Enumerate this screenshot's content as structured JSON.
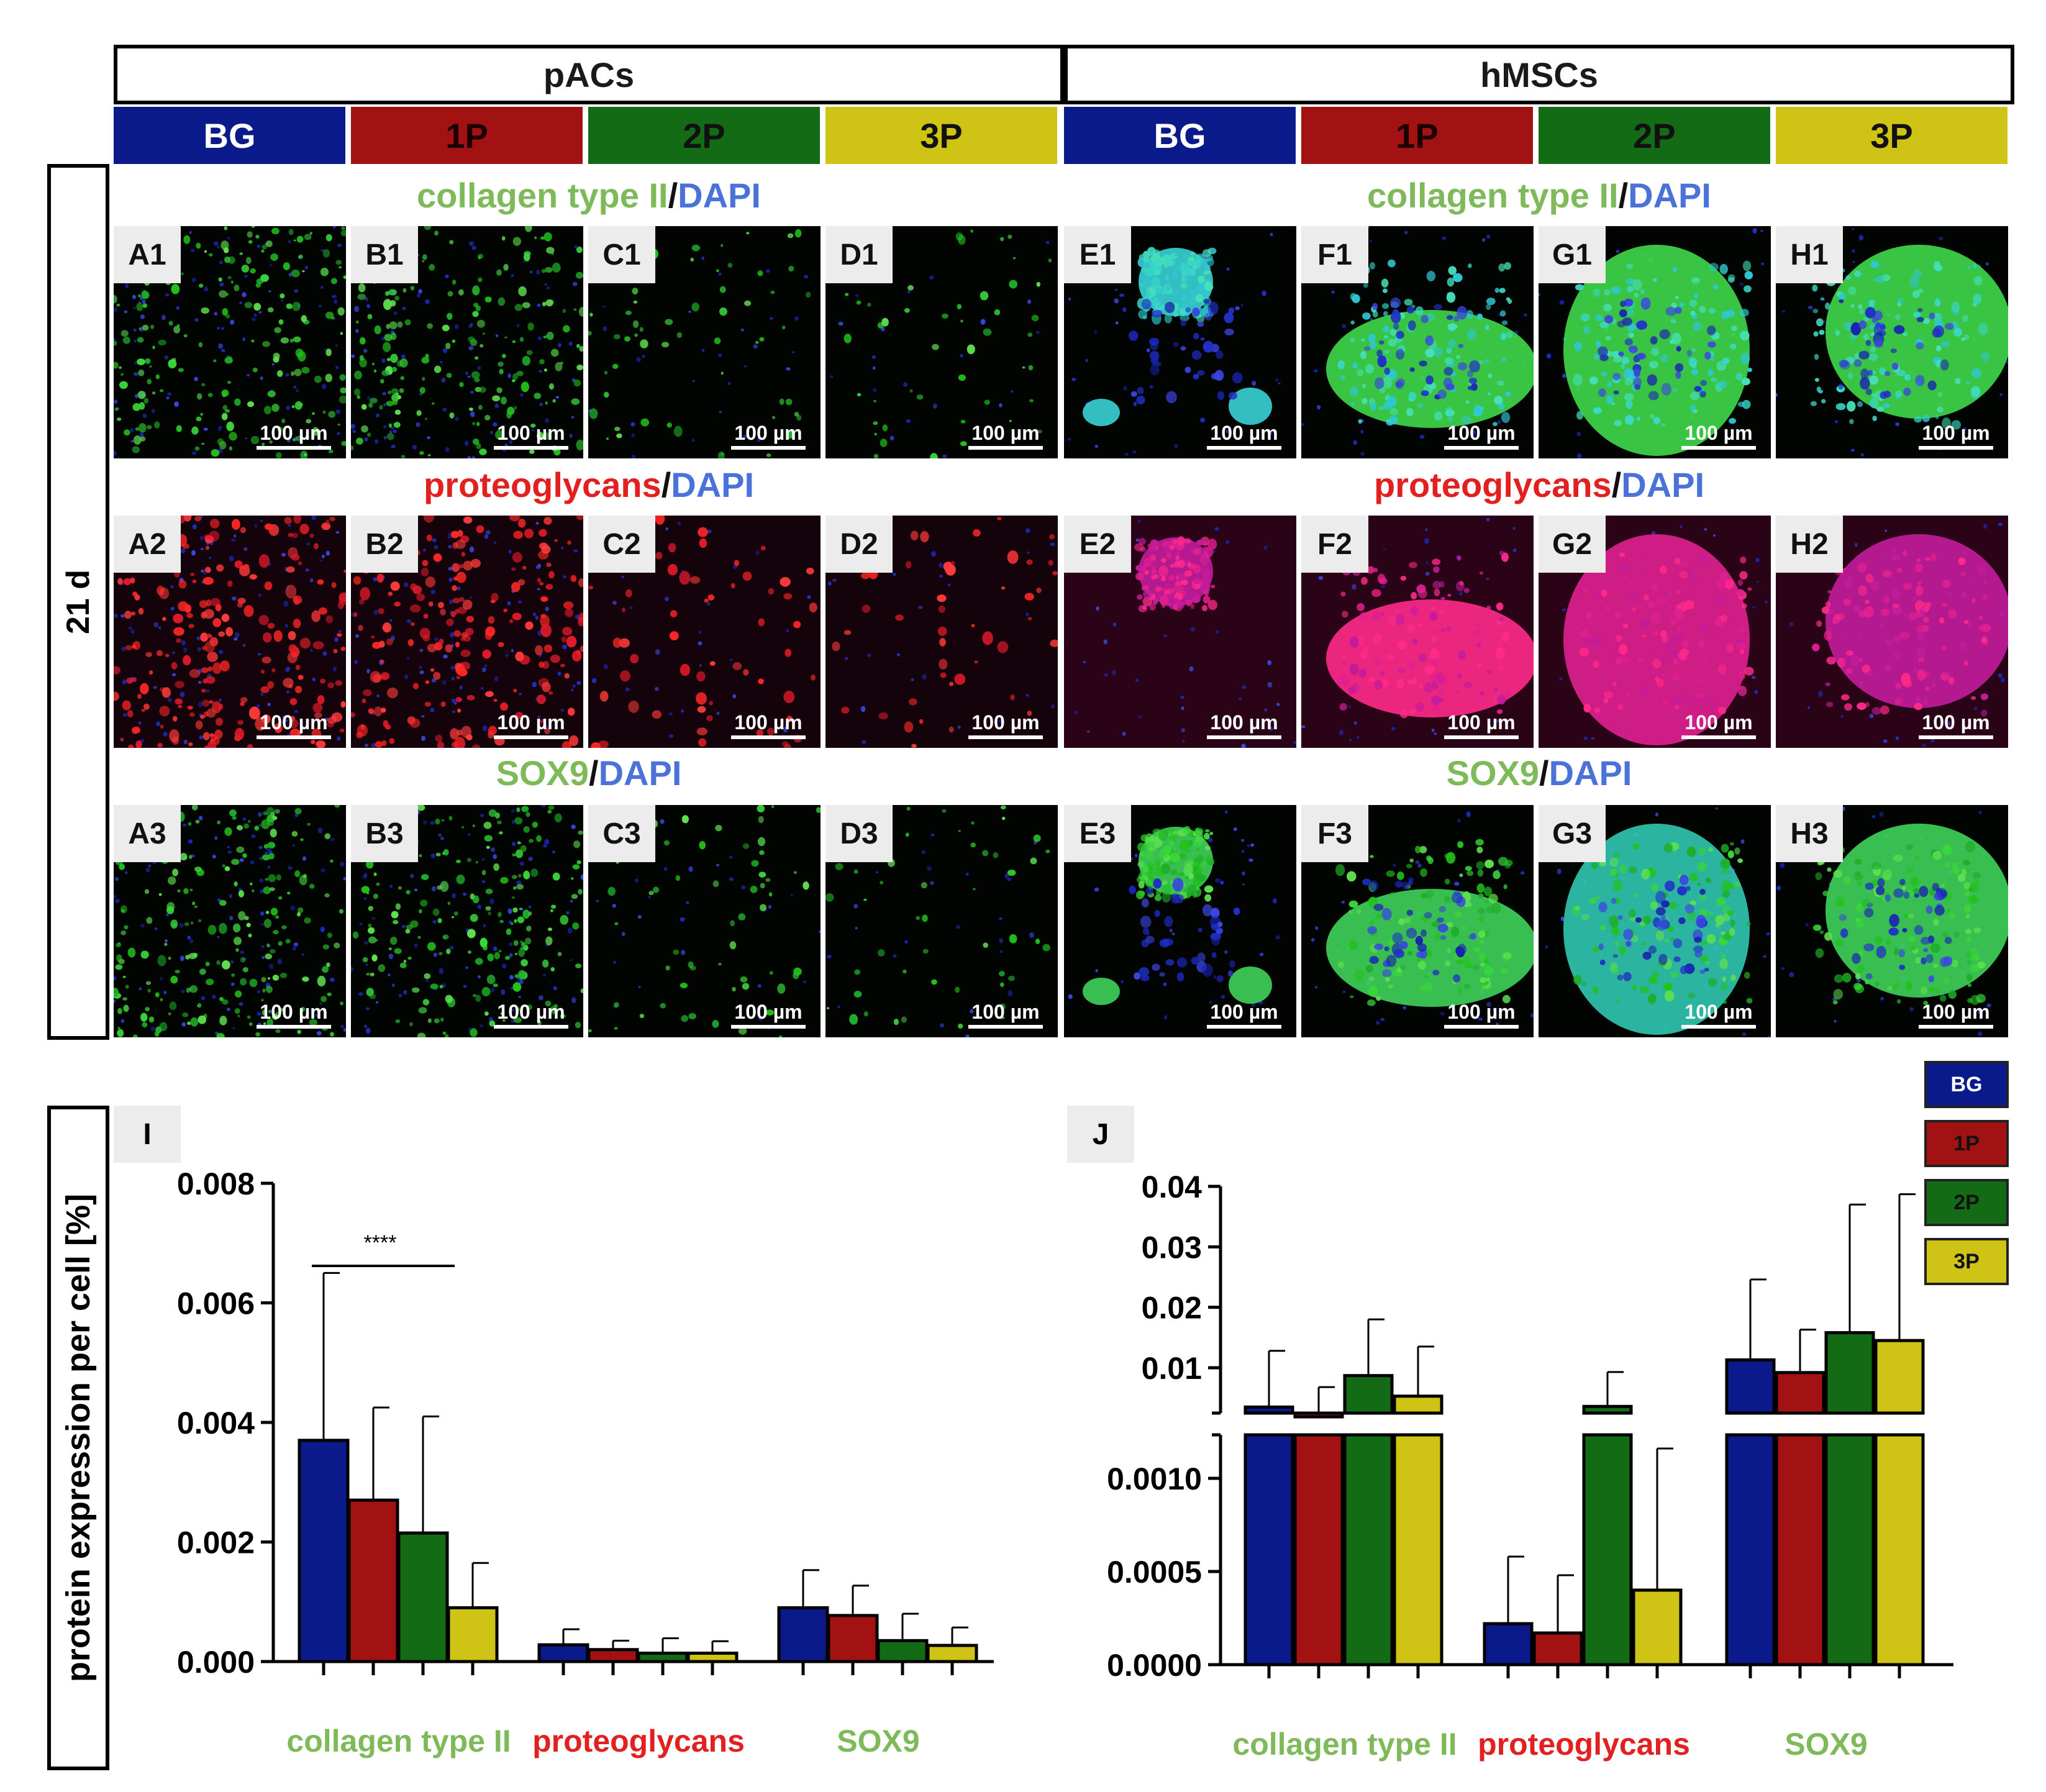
{
  "figure": {
    "groups": [
      {
        "label": "pACs"
      },
      {
        "label": "hMSCs"
      }
    ],
    "conditions": [
      "BG",
      "1P",
      "2P",
      "3P"
    ],
    "timepoint": "21 d",
    "stains": [
      {
        "parts": [
          "collagen type II",
          "/",
          "DAPI"
        ],
        "colors": [
          "#7fba5a",
          "#111111",
          "#4a72d8"
        ]
      },
      {
        "parts": [
          "proteoglycans",
          "/",
          "DAPI"
        ],
        "colors": [
          "#e32020",
          "#111111",
          "#4a72d8"
        ]
      },
      {
        "parts": [
          "SOX9",
          "/",
          "DAPI"
        ],
        "colors": [
          "#7fba5a",
          "#111111",
          "#4a72d8"
        ]
      }
    ],
    "panels": [
      [
        "A1",
        "B1",
        "C1",
        "D1",
        "E1",
        "F1",
        "G1",
        "H1"
      ],
      [
        "A2",
        "B2",
        "C2",
        "D2",
        "E2",
        "F2",
        "G2",
        "H2"
      ],
      [
        "A3",
        "B3",
        "C3",
        "D3",
        "E3",
        "F3",
        "G3",
        "H3"
      ]
    ],
    "scalebar": "100 µm",
    "condition_colors": {
      "BG": "#0b1a8a",
      "1P": "#a31212",
      "2P": "#136b16",
      "3P": "#cfc316"
    },
    "legend": [
      "BG",
      "1P",
      "2P",
      "3P"
    ]
  },
  "chart_data": [
    {
      "panel": "I",
      "type": "bar",
      "ylabel": "protein expression per cell [%]",
      "categories": [
        "collagen type II",
        "proteoglycans",
        "SOX9"
      ],
      "category_colors": [
        "#7fba5a",
        "#e32020",
        "#7fba5a"
      ],
      "ylim": [
        0,
        0.008
      ],
      "yticks": [
        "0.000",
        "0.002",
        "0.004",
        "0.006",
        "0.008"
      ],
      "series": [
        {
          "name": "BG",
          "values": [
            0.0037,
            0.00028,
            0.0009
          ],
          "errors": [
            0.0028,
            0.00026,
            0.00063
          ]
        },
        {
          "name": "1P",
          "values": [
            0.0027,
            0.0002,
            0.00077
          ],
          "errors": [
            0.00155,
            0.00015,
            0.0005
          ]
        },
        {
          "name": "2P",
          "values": [
            0.00215,
            0.00014,
            0.00035
          ],
          "errors": [
            0.00195,
            0.00025,
            0.00045
          ]
        },
        {
          "name": "3P",
          "values": [
            0.0009,
            0.00014,
            0.00027
          ],
          "errors": [
            0.00075,
            0.0002,
            0.0003
          ]
        }
      ],
      "significance": "****"
    },
    {
      "panel": "J",
      "type": "bar",
      "ylabel": "",
      "broken_axis": true,
      "categories": [
        "collagen type II",
        "proteoglycans",
        "SOX9"
      ],
      "category_colors": [
        "#7fba5a",
        "#e32020",
        "#7fba5a"
      ],
      "ylim_lower": [
        0,
        0.0012
      ],
      "ylim_upper": [
        0.0025,
        0.04
      ],
      "yticks_lower": [
        "0.0000",
        "0.0005",
        "0.0010"
      ],
      "yticks_upper": [
        "0.01",
        "0.02",
        "0.03",
        "0.04"
      ],
      "series": [
        {
          "name": "BG",
          "values": [
            0.0035,
            0.00022,
            0.0113
          ],
          "errors": [
            0.0093,
            0.00036,
            0.0133
          ]
        },
        {
          "name": "1P",
          "values": [
            0.0025,
            0.00017,
            0.0092
          ],
          "errors": [
            0.0043,
            0.00031,
            0.0071
          ]
        },
        {
          "name": "2P",
          "values": [
            0.0087,
            0.0036,
            0.0158
          ],
          "errors": [
            0.0093,
            0.0057,
            0.0212
          ]
        },
        {
          "name": "3P",
          "values": [
            0.0053,
            0.0004,
            0.0145
          ],
          "errors": [
            0.0082,
            0.00076,
            0.0242
          ]
        }
      ]
    }
  ]
}
